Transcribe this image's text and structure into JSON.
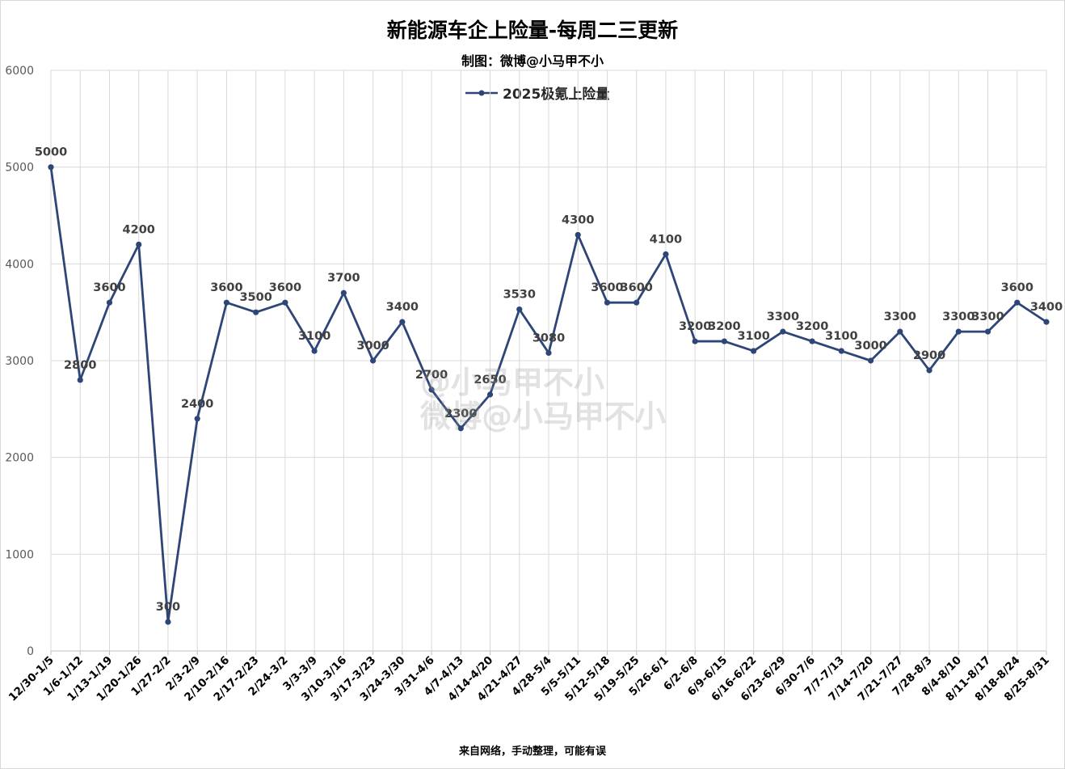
{
  "title": "新能源车企上险量-每周二三更新",
  "subtitle": "制图：微博@小马甲不小",
  "footer": "来自网络，手动整理，可能有误",
  "watermark": {
    "line1": "@小马甲不小",
    "line2": "微博@小马甲不小"
  },
  "colors": {
    "series": "#2E4677",
    "grid": "#d9d9d9"
  },
  "chart_data": {
    "type": "line",
    "title": "新能源车企上险量-每周二三更新",
    "ylim": [
      0,
      6000
    ],
    "yticks": [
      0,
      1000,
      2000,
      3000,
      4000,
      5000,
      6000
    ],
    "grid": true,
    "legend_position": "top-center",
    "categories": [
      "12/30-1/5",
      "1/6-1/12",
      "1/13-1/19",
      "1/20-1/26",
      "1/27-2/2",
      "2/3-2/9",
      "2/10-2/16",
      "2/17-2/23",
      "2/24-3/2",
      "3/3-3/9",
      "3/10-3/16",
      "3/17-3/23",
      "3/24-3/30",
      "3/31-4/6",
      "4/7-4/13",
      "4/14-4/20",
      "4/21-4/27",
      "4/28-5/4",
      "5/5-5/11",
      "5/12-5/18",
      "5/19-5/25",
      "5/26-6/1",
      "6/2-6/8",
      "6/9-6/15",
      "6/16-6/22",
      "6/23-6/29",
      "6/30-7/6",
      "7/7-7/13",
      "7/14-7/20",
      "7/21-7/27",
      "7/28-8/3",
      "8/4-8/10",
      "8/11-8/17",
      "8/18-8/24",
      "8/25-8/31"
    ],
    "series": [
      {
        "name": "2025极氪上险量",
        "values": [
          5000,
          2800,
          3600,
          4200,
          300,
          2400,
          3600,
          3500,
          3600,
          3100,
          3700,
          3000,
          3400,
          2700,
          2300,
          2650,
          3530,
          3080,
          4300,
          3600,
          3600,
          4100,
          3200,
          3200,
          3100,
          3300,
          3200,
          3100,
          3000,
          3300,
          2900,
          3300,
          3300,
          3600,
          3400
        ]
      }
    ]
  }
}
